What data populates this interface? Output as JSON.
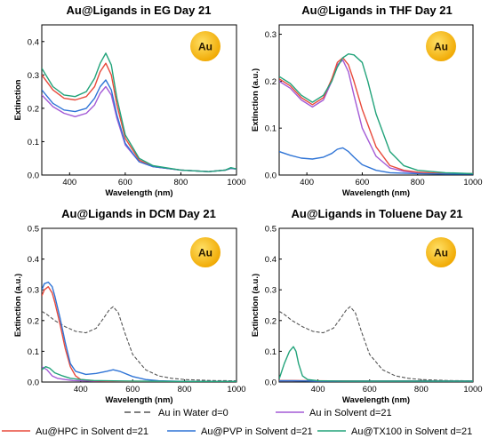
{
  "colors": {
    "water": "#555555",
    "solvent": "#a35ad6",
    "hpc": "#e84a3c",
    "pvp": "#2f74d6",
    "tx100": "#22a37a",
    "gold_light": "#ffe066",
    "gold_dark": "#f0a800"
  },
  "legend": [
    {
      "key": "water",
      "label": "Au in Water d=0",
      "style": "dashed"
    },
    {
      "key": "solvent",
      "label": "Au in Solvent d=21",
      "style": "solid"
    },
    {
      "key": "hpc",
      "label": "Au@HPC in Solvent d=21",
      "style": "solid"
    },
    {
      "key": "pvp",
      "label": "Au@PVP in Solvent d=21",
      "style": "solid"
    },
    {
      "key": "tx100",
      "label": "Au@TX100 in Solvent d=21",
      "style": "solid"
    }
  ],
  "chart_data": [
    {
      "type": "line",
      "title": "Au@Ligands in EG Day 21",
      "xlabel": "Wavelength (nm)",
      "ylabel": "Extinction",
      "xlim": [
        300,
        1000
      ],
      "ylim": [
        0,
        0.45
      ],
      "xticks": [
        "400",
        "600",
        "800",
        "1000"
      ],
      "yticks": [
        "0.0",
        "0.1",
        "0.2",
        "0.3",
        "0.4"
      ],
      "badge": "Au",
      "series": [
        {
          "key": "solvent",
          "x": [
            300,
            340,
            380,
            420,
            460,
            490,
            510,
            530,
            550,
            570,
            600,
            650,
            700,
            800,
            900,
            960,
            980,
            1000
          ],
          "y": [
            0.24,
            0.205,
            0.185,
            0.175,
            0.185,
            0.21,
            0.245,
            0.265,
            0.24,
            0.17,
            0.09,
            0.04,
            0.025,
            0.015,
            0.01,
            0.015,
            0.02,
            0.018
          ]
        },
        {
          "key": "hpc",
          "x": [
            300,
            340,
            380,
            420,
            460,
            490,
            510,
            530,
            550,
            570,
            600,
            650,
            700,
            800,
            900,
            960,
            980,
            1000
          ],
          "y": [
            0.3,
            0.255,
            0.23,
            0.225,
            0.235,
            0.265,
            0.31,
            0.335,
            0.3,
            0.21,
            0.11,
            0.045,
            0.025,
            0.015,
            0.01,
            0.015,
            0.02,
            0.018
          ]
        },
        {
          "key": "pvp",
          "x": [
            300,
            340,
            380,
            420,
            460,
            490,
            510,
            530,
            550,
            570,
            600,
            650,
            700,
            800,
            900,
            960,
            980,
            1000
          ],
          "y": [
            0.255,
            0.215,
            0.195,
            0.19,
            0.2,
            0.23,
            0.265,
            0.285,
            0.255,
            0.18,
            0.095,
            0.04,
            0.025,
            0.015,
            0.01,
            0.015,
            0.02,
            0.018
          ]
        },
        {
          "key": "tx100",
          "x": [
            300,
            340,
            380,
            420,
            460,
            490,
            510,
            530,
            550,
            570,
            600,
            650,
            700,
            800,
            900,
            960,
            980,
            1000
          ],
          "y": [
            0.32,
            0.265,
            0.24,
            0.235,
            0.25,
            0.29,
            0.335,
            0.365,
            0.33,
            0.23,
            0.12,
            0.05,
            0.028,
            0.015,
            0.01,
            0.015,
            0.022,
            0.018
          ]
        }
      ]
    },
    {
      "type": "line",
      "title": "Au@Ligands in THF Day 21",
      "xlabel": "Wavelength (nm)",
      "ylabel": "Extinction (a.u.)",
      "xlim": [
        300,
        1000
      ],
      "ylim": [
        0,
        0.32
      ],
      "xticks": [
        "400",
        "600",
        "800",
        "1000"
      ],
      "yticks": [
        "0.0",
        "0.1",
        "0.2",
        "0.3"
      ],
      "badge": "Au",
      "series": [
        {
          "key": "solvent",
          "x": [
            300,
            340,
            380,
            420,
            460,
            490,
            510,
            530,
            550,
            570,
            600,
            650,
            700,
            750,
            800,
            900,
            1000
          ],
          "y": [
            0.2,
            0.185,
            0.16,
            0.145,
            0.16,
            0.2,
            0.235,
            0.245,
            0.22,
            0.17,
            0.1,
            0.04,
            0.015,
            0.008,
            0.005,
            0.003,
            0.003
          ]
        },
        {
          "key": "hpc",
          "x": [
            300,
            340,
            380,
            420,
            460,
            490,
            510,
            530,
            550,
            570,
            600,
            650,
            700,
            750,
            800,
            900,
            1000
          ],
          "y": [
            0.205,
            0.19,
            0.165,
            0.15,
            0.165,
            0.205,
            0.24,
            0.25,
            0.235,
            0.2,
            0.14,
            0.06,
            0.02,
            0.01,
            0.006,
            0.003,
            0.003
          ]
        },
        {
          "key": "pvp",
          "x": [
            300,
            340,
            380,
            420,
            460,
            490,
            510,
            530,
            550,
            570,
            600,
            650,
            700,
            800,
            900,
            1000
          ],
          "y": [
            0.05,
            0.042,
            0.036,
            0.034,
            0.038,
            0.046,
            0.055,
            0.058,
            0.05,
            0.038,
            0.022,
            0.01,
            0.005,
            0.003,
            0.002,
            0.002
          ]
        },
        {
          "key": "tx100",
          "x": [
            300,
            340,
            380,
            420,
            460,
            490,
            510,
            530,
            550,
            570,
            600,
            620,
            650,
            700,
            750,
            800,
            900,
            1000
          ],
          "y": [
            0.21,
            0.195,
            0.17,
            0.155,
            0.17,
            0.2,
            0.23,
            0.25,
            0.258,
            0.256,
            0.24,
            0.2,
            0.13,
            0.05,
            0.02,
            0.01,
            0.005,
            0.003
          ]
        }
      ]
    },
    {
      "type": "line",
      "title": "Au@Ligands in DCM Day 21",
      "xlabel": "Wavelength (nm)",
      "ylabel": "Extinction (a.u.)",
      "xlim": [
        250,
        1000
      ],
      "ylim": [
        0,
        0.5
      ],
      "xticks": [
        "400",
        "600",
        "800",
        "1000"
      ],
      "yticks": [
        "0.0",
        "0.1",
        "0.2",
        "0.3",
        "0.4",
        "0.5"
      ],
      "badge": "Au",
      "series": [
        {
          "key": "water",
          "x": [
            250,
            270,
            300,
            340,
            380,
            420,
            460,
            490,
            510,
            525,
            545,
            570,
            600,
            650,
            700,
            750,
            800,
            900,
            1000
          ],
          "y": [
            0.23,
            0.22,
            0.2,
            0.18,
            0.165,
            0.16,
            0.175,
            0.21,
            0.235,
            0.245,
            0.225,
            0.16,
            0.09,
            0.04,
            0.02,
            0.012,
            0.008,
            0.005,
            0.004
          ]
        },
        {
          "key": "solvent",
          "x": [
            250,
            270,
            290,
            310,
            340,
            370,
            400,
            450,
            500,
            600,
            700,
            800,
            1000
          ],
          "y": [
            0.05,
            0.04,
            0.02,
            0.012,
            0.008,
            0.005,
            0.004,
            0.003,
            0.003,
            0.002,
            0.002,
            0.002,
            0.002
          ]
        },
        {
          "key": "hpc",
          "x": [
            250,
            260,
            275,
            290,
            300,
            320,
            340,
            360,
            380,
            400,
            450,
            500,
            600,
            700,
            800,
            1000
          ],
          "y": [
            0.28,
            0.3,
            0.31,
            0.29,
            0.26,
            0.19,
            0.11,
            0.05,
            0.02,
            0.008,
            0.004,
            0.003,
            0.002,
            0.002,
            0.002,
            0.002
          ]
        },
        {
          "key": "pvp",
          "x": [
            250,
            260,
            275,
            290,
            300,
            320,
            340,
            360,
            380,
            420,
            460,
            500,
            525,
            550,
            600,
            650,
            700,
            800,
            1000
          ],
          "y": [
            0.3,
            0.32,
            0.325,
            0.31,
            0.28,
            0.21,
            0.13,
            0.06,
            0.035,
            0.025,
            0.028,
            0.035,
            0.04,
            0.035,
            0.018,
            0.008,
            0.004,
            0.002,
            0.002
          ]
        },
        {
          "key": "tx100",
          "x": [
            250,
            265,
            280,
            300,
            330,
            360,
            400,
            450,
            500,
            600,
            800,
            1000
          ],
          "y": [
            0.04,
            0.05,
            0.045,
            0.03,
            0.02,
            0.012,
            0.008,
            0.005,
            0.004,
            0.003,
            0.002,
            0.002
          ]
        }
      ]
    },
    {
      "type": "line",
      "title": "Au@Ligands in Toluene Day 21",
      "xlabel": "Wavelength (nm)",
      "ylabel": "Extinction (a.u.)",
      "xlim": [
        250,
        1000
      ],
      "ylim": [
        0,
        0.5
      ],
      "xticks": [
        "400",
        "600",
        "800",
        "1000"
      ],
      "yticks": [
        "0.0",
        "0.1",
        "0.2",
        "0.3",
        "0.4",
        "0.5"
      ],
      "badge": "Au",
      "series": [
        {
          "key": "water",
          "x": [
            250,
            270,
            300,
            340,
            380,
            420,
            460,
            490,
            510,
            525,
            545,
            570,
            600,
            650,
            700,
            750,
            800,
            900,
            1000
          ],
          "y": [
            0.23,
            0.22,
            0.2,
            0.18,
            0.165,
            0.16,
            0.175,
            0.21,
            0.235,
            0.245,
            0.225,
            0.16,
            0.09,
            0.04,
            0.02,
            0.012,
            0.008,
            0.005,
            0.004
          ]
        },
        {
          "key": "solvent",
          "x": [
            250,
            300,
            400,
            600,
            800,
            1000
          ],
          "y": [
            0.004,
            0.004,
            0.003,
            0.003,
            0.003,
            0.003
          ]
        },
        {
          "key": "hpc",
          "x": [
            250,
            300,
            400,
            600,
            800,
            1000
          ],
          "y": [
            0.005,
            0.005,
            0.004,
            0.003,
            0.003,
            0.003
          ]
        },
        {
          "key": "pvp",
          "x": [
            250,
            300,
            400,
            600,
            800,
            1000
          ],
          "y": [
            0.004,
            0.004,
            0.003,
            0.003,
            0.003,
            0.003
          ]
        },
        {
          "key": "tx100",
          "x": [
            250,
            270,
            290,
            305,
            315,
            325,
            340,
            360,
            400,
            500,
            700,
            1000
          ],
          "y": [
            0.01,
            0.06,
            0.1,
            0.115,
            0.1,
            0.06,
            0.02,
            0.008,
            0.004,
            0.003,
            0.003,
            0.003
          ]
        }
      ]
    }
  ]
}
